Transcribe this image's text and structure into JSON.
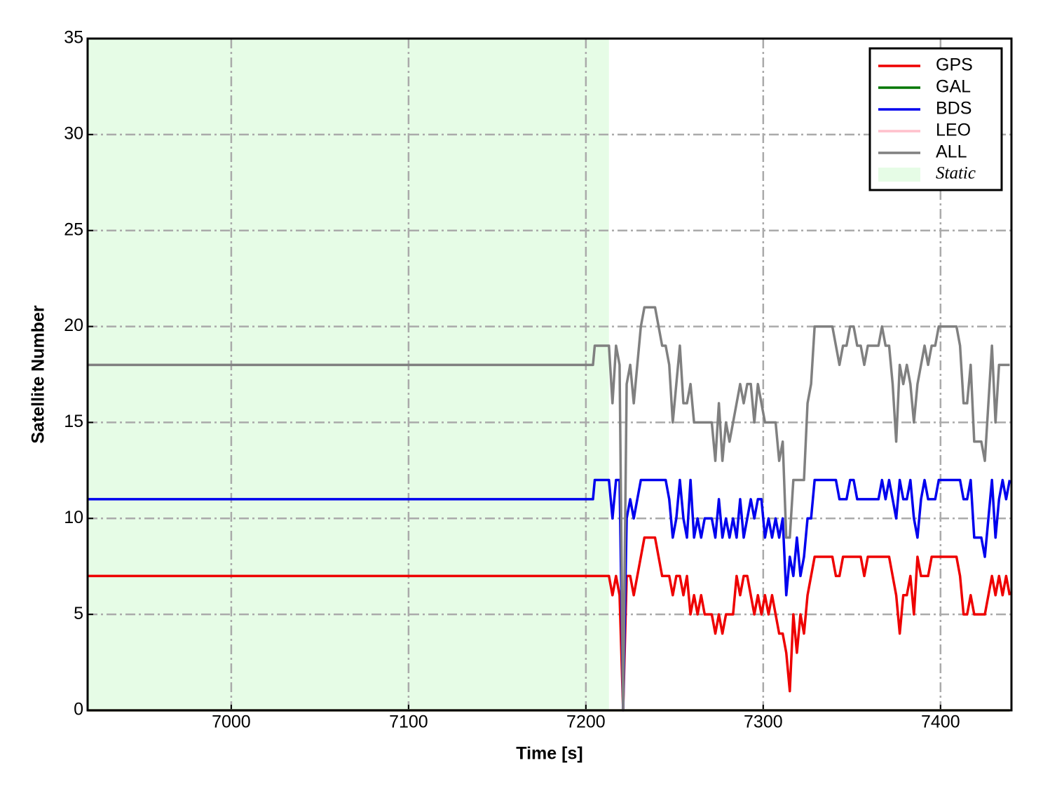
{
  "chart_data": {
    "type": "line",
    "xlabel": "Time [s]",
    "ylabel": "Satellite Number",
    "xlim": [
      6919,
      7440
    ],
    "ylim": [
      0,
      35
    ],
    "xticks": [
      7000,
      7100,
      7200,
      7300,
      7400
    ],
    "yticks": [
      0,
      5,
      10,
      15,
      20,
      25,
      30,
      35
    ],
    "grid": true,
    "legend": "upper right",
    "static_region": {
      "label": "Static",
      "start": 6919,
      "end": 7213,
      "color": "#e6fce6"
    },
    "x": [
      6919,
      7204,
      7205,
      7207,
      7209,
      7211,
      7213,
      7215,
      7217,
      7219,
      7221,
      7223,
      7225,
      7227,
      7229,
      7231,
      7233,
      7235,
      7237,
      7239,
      7241,
      7243,
      7245,
      7247,
      7249,
      7251,
      7253,
      7255,
      7257,
      7259,
      7261,
      7263,
      7265,
      7267,
      7269,
      7271,
      7273,
      7275,
      7277,
      7279,
      7281,
      7283,
      7285,
      7287,
      7289,
      7291,
      7293,
      7295,
      7297,
      7299,
      7301,
      7303,
      7305,
      7307,
      7309,
      7311,
      7313,
      7315,
      7317,
      7319,
      7321,
      7323,
      7325,
      7327,
      7329,
      7331,
      7333,
      7335,
      7337,
      7339,
      7341,
      7343,
      7345,
      7347,
      7349,
      7351,
      7353,
      7355,
      7357,
      7359,
      7361,
      7363,
      7365,
      7367,
      7369,
      7371,
      7373,
      7375,
      7377,
      7379,
      7381,
      7383,
      7385,
      7387,
      7389,
      7391,
      7393,
      7395,
      7397,
      7399,
      7401,
      7403,
      7405,
      7407,
      7409,
      7411,
      7413,
      7415,
      7417,
      7419,
      7421,
      7423,
      7425,
      7427,
      7429,
      7431,
      7433,
      7435,
      7437,
      7439
    ],
    "series": [
      {
        "name": "GPS",
        "color": "#ee0000",
        "values": [
          7,
          7,
          7,
          7,
          7,
          7,
          7,
          6,
          7,
          6,
          0,
          7,
          7,
          6,
          7,
          8,
          9,
          9,
          9,
          9,
          8,
          7,
          7,
          7,
          6,
          7,
          7,
          6,
          7,
          5,
          6,
          5,
          6,
          5,
          5,
          5,
          4,
          5,
          4,
          5,
          5,
          5,
          7,
          6,
          7,
          7,
          6,
          5,
          6,
          5,
          6,
          5,
          6,
          5,
          4,
          4,
          3,
          1,
          5,
          3,
          5,
          4,
          6,
          7,
          8,
          8,
          8,
          8,
          8,
          8,
          7,
          7,
          8,
          8,
          8,
          8,
          8,
          8,
          7,
          8,
          8,
          8,
          8,
          8,
          8,
          8,
          7,
          6,
          4,
          6,
          6,
          7,
          5,
          8,
          7,
          7,
          7,
          8,
          8,
          8,
          8,
          8,
          8,
          8,
          8,
          7,
          5,
          5,
          6,
          5,
          5,
          5,
          5,
          6,
          7,
          6,
          7,
          6,
          7,
          6
        ]
      },
      {
        "name": "GAL",
        "color": "#007700",
        "values": [
          0,
          0,
          0,
          0,
          0,
          0,
          0,
          0,
          0,
          0,
          0,
          0,
          0,
          0,
          0,
          0,
          0,
          0,
          0,
          0,
          0,
          0,
          0,
          0,
          0,
          0,
          0,
          0,
          0,
          0,
          0,
          0,
          0,
          0,
          0,
          0,
          0,
          0,
          0,
          0,
          0,
          0,
          0,
          0,
          0,
          0,
          0,
          0,
          0,
          0,
          0,
          0,
          0,
          0,
          0,
          0,
          0,
          0,
          0,
          0,
          0,
          0,
          0,
          0,
          0,
          0,
          0,
          0,
          0,
          0,
          0,
          0,
          0,
          0,
          0,
          0,
          0,
          0,
          0,
          0,
          0,
          0,
          0,
          0,
          0,
          0,
          0,
          0,
          0,
          0,
          0,
          0,
          0,
          0,
          0,
          0,
          0,
          0,
          0,
          0,
          0,
          0,
          0,
          0,
          0,
          0,
          0,
          0,
          0,
          0,
          0,
          0,
          0,
          0,
          0,
          0,
          0,
          0,
          0,
          0
        ]
      },
      {
        "name": "BDS",
        "color": "#0000ee",
        "values": [
          11,
          11,
          12,
          12,
          12,
          12,
          12,
          10,
          12,
          12,
          0,
          10,
          11,
          10,
          11,
          12,
          12,
          12,
          12,
          12,
          12,
          12,
          12,
          11,
          9,
          10,
          12,
          10,
          9,
          12,
          9,
          10,
          9,
          10,
          10,
          10,
          9,
          11,
          9,
          10,
          9,
          10,
          9,
          11,
          9,
          10,
          11,
          10,
          11,
          11,
          9,
          10,
          9,
          10,
          9,
          10,
          6,
          8,
          7,
          9,
          7,
          8,
          10,
          10,
          12,
          12,
          12,
          12,
          12,
          12,
          12,
          11,
          11,
          11,
          12,
          12,
          11,
          11,
          11,
          11,
          11,
          11,
          11,
          12,
          11,
          12,
          11,
          10,
          12,
          11,
          11,
          12,
          10,
          9,
          11,
          12,
          11,
          11,
          11,
          12,
          12,
          12,
          12,
          12,
          12,
          12,
          11,
          11,
          12,
          9,
          9,
          9,
          8,
          10,
          12,
          9,
          11,
          12,
          11,
          12
        ]
      },
      {
        "name": "LEO",
        "color": "#ffc0cb",
        "values": [
          0,
          0,
          0,
          0,
          0,
          0,
          0,
          0,
          0,
          0,
          0,
          0,
          0,
          0,
          0,
          0,
          0,
          0,
          0,
          0,
          0,
          0,
          0,
          0,
          0,
          0,
          0,
          0,
          0,
          0,
          0,
          0,
          0,
          0,
          0,
          0,
          0,
          0,
          0,
          0,
          0,
          0,
          0,
          0,
          0,
          0,
          0,
          0,
          0,
          0,
          0,
          0,
          0,
          0,
          0,
          0,
          0,
          0,
          0,
          0,
          0,
          0,
          0,
          0,
          0,
          0,
          0,
          0,
          0,
          0,
          0,
          0,
          0,
          0,
          0,
          0,
          0,
          0,
          0,
          0,
          0,
          0,
          0,
          0,
          0,
          0,
          0,
          0,
          0,
          0,
          0,
          0,
          0,
          0,
          0,
          0,
          0,
          0,
          0,
          0,
          0,
          0,
          0,
          0,
          0,
          0,
          0,
          0,
          0,
          0,
          0,
          0,
          0,
          0,
          0,
          0,
          0,
          0,
          0,
          0
        ]
      },
      {
        "name": "ALL",
        "color": "#808080",
        "values": [
          18,
          18,
          19,
          19,
          19,
          19,
          19,
          16,
          19,
          18,
          0,
          17,
          18,
          16,
          18,
          20,
          21,
          21,
          21,
          21,
          20,
          19,
          19,
          18,
          15,
          17,
          19,
          16,
          16,
          17,
          15,
          15,
          15,
          15,
          15,
          15,
          13,
          16,
          13,
          15,
          14,
          15,
          16,
          17,
          16,
          17,
          17,
          15,
          17,
          16,
          15,
          15,
          15,
          15,
          13,
          14,
          9,
          9,
          12,
          12,
          12,
          12,
          16,
          17,
          20,
          20,
          20,
          20,
          20,
          20,
          19,
          18,
          19,
          19,
          20,
          20,
          19,
          19,
          18,
          19,
          19,
          19,
          19,
          20,
          19,
          19,
          17,
          14,
          18,
          17,
          18,
          17,
          15,
          17,
          18,
          19,
          18,
          19,
          19,
          20,
          20,
          20,
          20,
          20,
          20,
          19,
          16,
          16,
          18,
          14,
          14,
          14,
          13,
          16,
          19,
          15,
          18,
          18,
          18,
          18
        ]
      }
    ]
  }
}
